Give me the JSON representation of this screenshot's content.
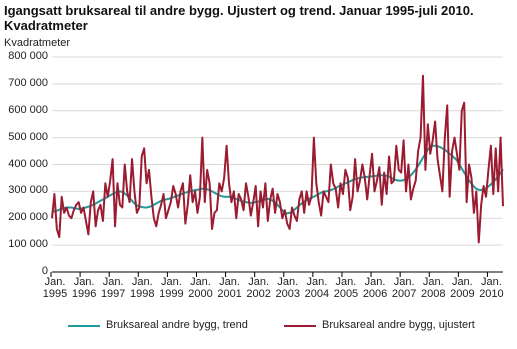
{
  "chart_data": {
    "type": "line",
    "title": "Igangsatt bruksareal til andre bygg. Ujustert og trend. Januar 1995-juli 2010. Kvadratmeter",
    "y_label": "Kvadratmeter",
    "categories": [
      "Jan.\n1995",
      null,
      null,
      null,
      null,
      null,
      null,
      null,
      null,
      null,
      null,
      null,
      "Jan.\n1996",
      null,
      null,
      null,
      null,
      null,
      null,
      null,
      null,
      null,
      null,
      null,
      "Jan.\n1997",
      null,
      null,
      null,
      null,
      null,
      null,
      null,
      null,
      null,
      null,
      null,
      "Jan.\n1998",
      null,
      null,
      null,
      null,
      null,
      null,
      null,
      null,
      null,
      null,
      null,
      "Jan.\n1999",
      null,
      null,
      null,
      null,
      null,
      null,
      null,
      null,
      null,
      null,
      null,
      "Jan.\n2000",
      null,
      null,
      null,
      null,
      null,
      null,
      null,
      null,
      null,
      null,
      null,
      "Jan.\n2001",
      null,
      null,
      null,
      null,
      null,
      null,
      null,
      null,
      null,
      null,
      null,
      "Jan.\n2002",
      null,
      null,
      null,
      null,
      null,
      null,
      null,
      null,
      null,
      null,
      null,
      "Jan.\n2003",
      null,
      null,
      null,
      null,
      null,
      null,
      null,
      null,
      null,
      null,
      null,
      "Jan.\n2004",
      null,
      null,
      null,
      null,
      null,
      null,
      null,
      null,
      null,
      null,
      null,
      "Jan.\n2005",
      null,
      null,
      null,
      null,
      null,
      null,
      null,
      null,
      null,
      null,
      null,
      "Jan.\n2006",
      null,
      null,
      null,
      null,
      null,
      null,
      null,
      null,
      null,
      null,
      null,
      "Jan.\n2007",
      null,
      null,
      null,
      null,
      null,
      null,
      null,
      null,
      null,
      null,
      null,
      "Jan.\n2008",
      null,
      null,
      null,
      null,
      null,
      null,
      null,
      null,
      null,
      null,
      null,
      "Jan.\n2009",
      null,
      null,
      null,
      null,
      null,
      null,
      null,
      null,
      null,
      null,
      null,
      "Jan.\n2010",
      null,
      null,
      null,
      null,
      null,
      null
    ],
    "series": [
      {
        "name": "Bruksareal andre bygg, trend",
        "color": "#1f9a98",
        "values": [
          225000,
          225000,
          228000,
          232000,
          235000,
          238000,
          240000,
          240000,
          240000,
          238000,
          236000,
          235000,
          236000,
          238000,
          240000,
          243000,
          246000,
          250000,
          255000,
          260000,
          265000,
          270000,
          275000,
          280000,
          285000,
          290000,
          295000,
          300000,
          300000,
          298000,
          292000,
          285000,
          275000,
          265000,
          255000,
          248000,
          244000,
          242000,
          240000,
          240000,
          242000,
          245000,
          250000,
          255000,
          260000,
          265000,
          268000,
          270000,
          272000,
          275000,
          278000,
          282000,
          285000,
          288000,
          292000,
          295000,
          298000,
          300000,
          302000,
          305000,
          306000,
          308000,
          310000,
          310000,
          308000,
          305000,
          300000,
          295000,
          290000,
          285000,
          282000,
          280000,
          280000,
          280000,
          278000,
          275000,
          272000,
          268000,
          265000,
          262000,
          260000,
          258000,
          257000,
          258000,
          260000,
          262000,
          265000,
          268000,
          270000,
          272000,
          270000,
          265000,
          258000,
          250000,
          240000,
          230000,
          222000,
          218000,
          220000,
          225000,
          232000,
          240000,
          248000,
          255000,
          262000,
          268000,
          272000,
          276000,
          280000,
          285000,
          290000,
          295000,
          298000,
          300000,
          302000,
          305000,
          308000,
          312000,
          318000,
          322000,
          326000,
          330000,
          334000,
          338000,
          342000,
          345000,
          348000,
          350000,
          352000,
          353000,
          354000,
          355000,
          356000,
          357000,
          358000,
          360000,
          360000,
          360000,
          358000,
          355000,
          350000,
          345000,
          342000,
          340000,
          340000,
          342000,
          346000,
          352000,
          360000,
          370000,
          382000,
          395000,
          410000,
          425000,
          440000,
          455000,
          465000,
          470000,
          470000,
          468000,
          465000,
          460000,
          455000,
          448000,
          440000,
          432000,
          425000,
          415000,
          400000,
          385000,
          370000,
          355000,
          340000,
          328000,
          318000,
          310000,
          306000,
          305000,
          308000,
          312000,
          318000,
          326000,
          335000,
          345000,
          355000,
          368000,
          382000
        ]
      },
      {
        "name": "Bruksareal andre bygg, ujustert",
        "color": "#9b1b30",
        "values": [
          200000,
          290000,
          160000,
          130000,
          280000,
          220000,
          240000,
          210000,
          200000,
          230000,
          250000,
          260000,
          220000,
          240000,
          190000,
          140000,
          260000,
          300000,
          170000,
          230000,
          250000,
          190000,
          330000,
          280000,
          340000,
          420000,
          170000,
          330000,
          250000,
          240000,
          400000,
          300000,
          260000,
          420000,
          300000,
          220000,
          240000,
          430000,
          460000,
          330000,
          380000,
          280000,
          200000,
          170000,
          220000,
          250000,
          290000,
          200000,
          230000,
          260000,
          320000,
          290000,
          240000,
          300000,
          330000,
          180000,
          250000,
          360000,
          260000,
          300000,
          220000,
          280000,
          500000,
          260000,
          380000,
          330000,
          160000,
          220000,
          230000,
          330000,
          300000,
          350000,
          470000,
          330000,
          260000,
          300000,
          200000,
          290000,
          270000,
          230000,
          330000,
          280000,
          210000,
          260000,
          320000,
          170000,
          300000,
          240000,
          330000,
          190000,
          270000,
          310000,
          220000,
          290000,
          260000,
          200000,
          230000,
          180000,
          160000,
          240000,
          210000,
          190000,
          270000,
          300000,
          220000,
          300000,
          250000,
          280000,
          500000,
          330000,
          260000,
          210000,
          300000,
          280000,
          260000,
          400000,
          330000,
          310000,
          240000,
          330000,
          290000,
          380000,
          350000,
          230000,
          280000,
          420000,
          300000,
          340000,
          400000,
          350000,
          270000,
          360000,
          440000,
          300000,
          340000,
          390000,
          250000,
          370000,
          290000,
          430000,
          330000,
          340000,
          470000,
          380000,
          370000,
          490000,
          300000,
          400000,
          270000,
          310000,
          340000,
          450000,
          500000,
          730000,
          380000,
          550000,
          440000,
          490000,
          560000,
          420000,
          360000,
          300000,
          500000,
          620000,
          280000,
          450000,
          500000,
          440000,
          380000,
          600000,
          630000,
          260000,
          400000,
          350000,
          220000,
          300000,
          110000,
          250000,
          320000,
          280000,
          380000,
          470000,
          290000,
          460000,
          300000,
          500000,
          245000
        ]
      }
    ],
    "ylim": [
      0,
      800000
    ],
    "yticks": [
      {
        "value": 0,
        "label": "0"
      },
      {
        "value": 100000,
        "label": "100 000"
      },
      {
        "value": 200000,
        "label": "200 000"
      },
      {
        "value": 300000,
        "label": "300 000"
      },
      {
        "value": 400000,
        "label": "400 000"
      },
      {
        "value": 500000,
        "label": "500 000"
      },
      {
        "value": 600000,
        "label": "600 000"
      },
      {
        "value": 700000,
        "label": "700 000"
      },
      {
        "value": 800000,
        "label": "800 000"
      }
    ],
    "grid": true
  }
}
